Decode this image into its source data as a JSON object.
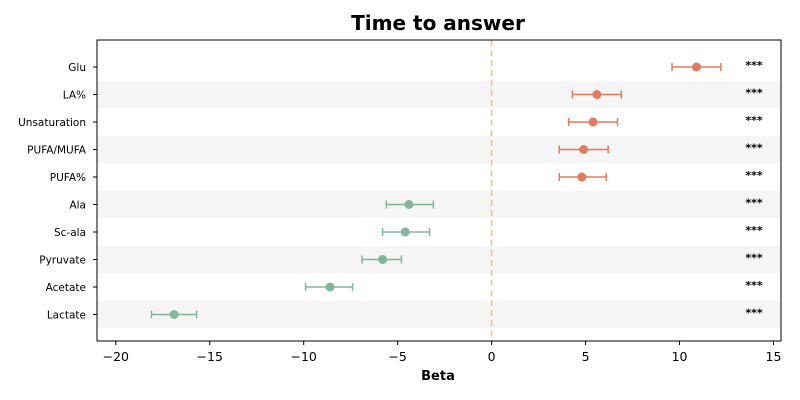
{
  "chart_data": {
    "type": "scatter",
    "subtype": "forest-plot",
    "title": "Time to answer",
    "xlabel": "Beta",
    "ylabel": "",
    "xlim": [
      -21,
      15.4
    ],
    "xticks": [
      -20,
      -15,
      -10,
      -5,
      0,
      5,
      10,
      15
    ],
    "xtick_labels": [
      "−20",
      "−15",
      "−10",
      "−5",
      "0",
      "5",
      "10",
      "15"
    ],
    "reference_line": {
      "x": 0,
      "style": "dashed",
      "color": "#f5c16c"
    },
    "row_band_color": "#f5f5f5",
    "colors": {
      "positive": "#e07b5f",
      "negative": "#82b59c"
    },
    "rows": [
      {
        "label": "Glu",
        "beta": 10.9,
        "ci_low": 9.6,
        "ci_high": 12.2,
        "sig": "***"
      },
      {
        "label": "LA%",
        "beta": 5.6,
        "ci_low": 4.3,
        "ci_high": 6.9,
        "sig": "***"
      },
      {
        "label": "Unsaturation",
        "beta": 5.4,
        "ci_low": 4.1,
        "ci_high": 6.7,
        "sig": "***"
      },
      {
        "label": "PUFA/MUFA",
        "beta": 4.9,
        "ci_low": 3.6,
        "ci_high": 6.2,
        "sig": "***"
      },
      {
        "label": "PUFA%",
        "beta": 4.8,
        "ci_low": 3.6,
        "ci_high": 6.1,
        "sig": "***"
      },
      {
        "label": "Ala",
        "beta": -4.4,
        "ci_low": -5.6,
        "ci_high": -3.1,
        "sig": "***"
      },
      {
        "label": "Sc-ala",
        "beta": -4.6,
        "ci_low": -5.8,
        "ci_high": -3.3,
        "sig": "***"
      },
      {
        "label": "Pyruvate",
        "beta": -5.8,
        "ci_low": -6.9,
        "ci_high": -4.8,
        "sig": "***"
      },
      {
        "label": "Acetate",
        "beta": -8.6,
        "ci_low": -9.9,
        "ci_high": -7.4,
        "sig": "***"
      },
      {
        "label": "Lactate",
        "beta": -16.9,
        "ci_low": -18.1,
        "ci_high": -15.7,
        "sig": "***"
      }
    ]
  }
}
